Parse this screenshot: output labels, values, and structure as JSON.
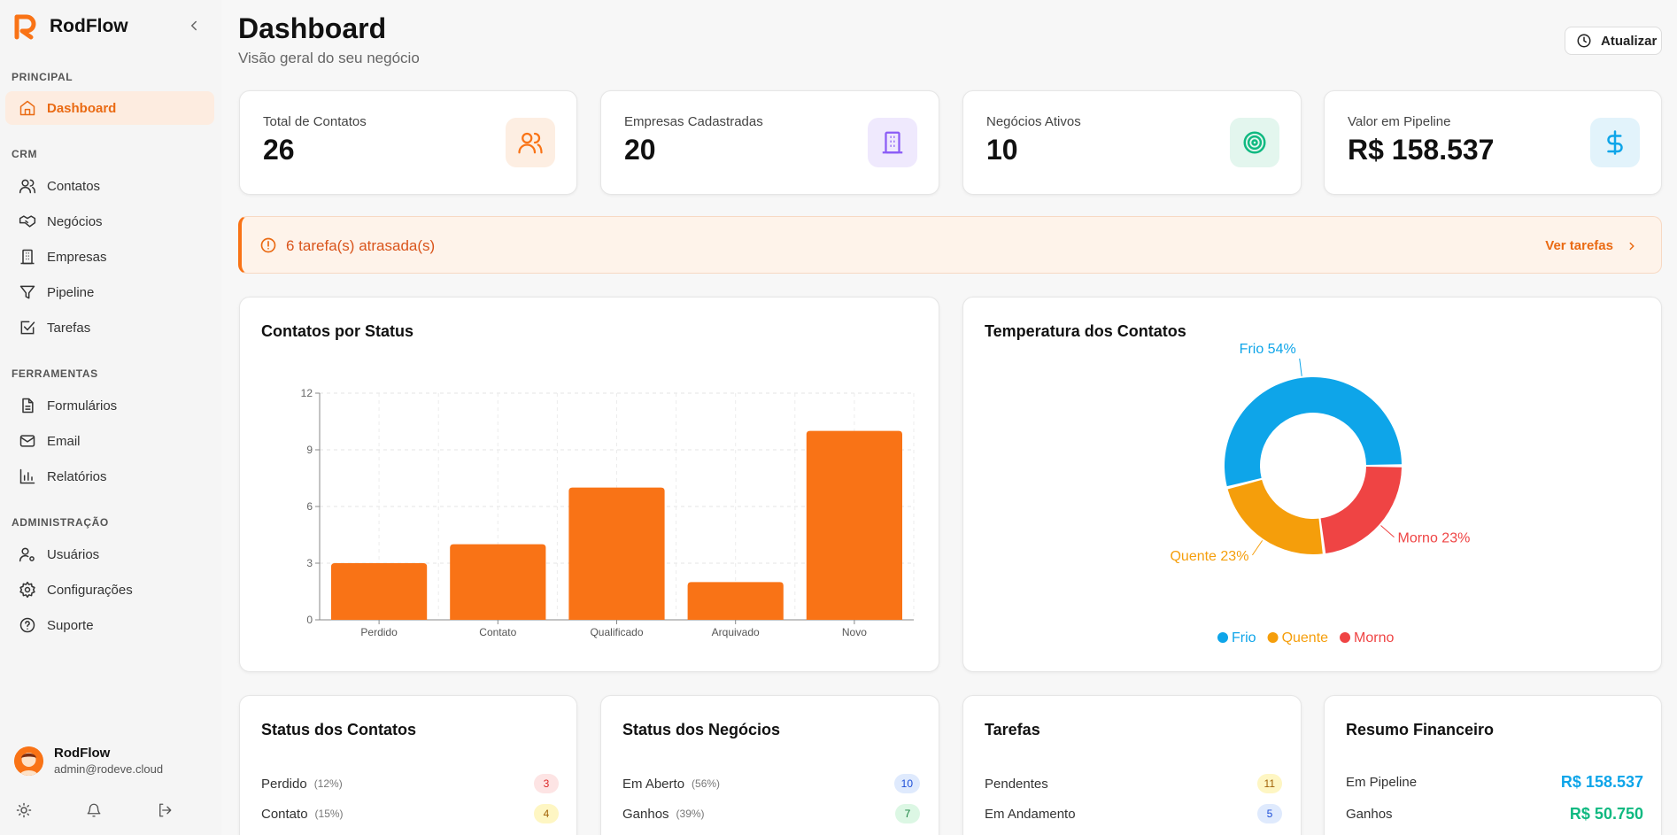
{
  "brand": {
    "name": "RodFlow"
  },
  "sidebar": {
    "sections": [
      {
        "label": "PRINCIPAL"
      },
      {
        "label": "CRM"
      },
      {
        "label": "FERRAMENTAS"
      },
      {
        "label": "ADMINISTRAÇÃO"
      }
    ],
    "items": [
      {
        "label": "Dashboard",
        "icon": "home-icon",
        "active": true
      },
      {
        "label": "Contatos",
        "icon": "users-icon"
      },
      {
        "label": "Negócios",
        "icon": "handshake-icon"
      },
      {
        "label": "Empresas",
        "icon": "building-icon"
      },
      {
        "label": "Pipeline",
        "icon": "filter-icon"
      },
      {
        "label": "Tarefas",
        "icon": "checkbox-icon"
      },
      {
        "label": "Formulários",
        "icon": "file-icon"
      },
      {
        "label": "Email",
        "icon": "mail-icon"
      },
      {
        "label": "Relatórios",
        "icon": "bar-chart-icon"
      },
      {
        "label": "Usuários",
        "icon": "user-cog-icon"
      },
      {
        "label": "Configurações",
        "icon": "gear-icon"
      },
      {
        "label": "Suporte",
        "icon": "help-icon"
      }
    ],
    "user": {
      "name": "RodFlow",
      "email": "admin@rodeve.cloud"
    }
  },
  "header": {
    "title": "Dashboard",
    "subtitle": "Visão geral do seu negócio",
    "refresh_label": "Atualizar"
  },
  "stats": [
    {
      "label": "Total de Contatos",
      "value": "26",
      "icon": "users-icon",
      "color": "#f97316",
      "bg": "#fdeee2"
    },
    {
      "label": "Empresas Cadastradas",
      "value": "20",
      "icon": "building-icon",
      "color": "#8b5cf6",
      "bg": "#efe9fd"
    },
    {
      "label": "Negócios Ativos",
      "value": "10",
      "icon": "target-icon",
      "color": "#10b981",
      "bg": "#e3f6ee"
    },
    {
      "label": "Valor em Pipeline",
      "value": "R$ 158.537",
      "icon": "dollar-icon",
      "color": "#0ea5e9",
      "bg": "#e2f3fb"
    }
  ],
  "alert": {
    "text": "6 tarefa(s) atrasada(s)",
    "link": "Ver tarefas"
  },
  "charts": {
    "status_title": "Contatos por Status",
    "temp_title": "Temperatura dos Contatos"
  },
  "chart_data": [
    {
      "type": "bar",
      "title": "Contatos por Status",
      "categories": [
        "Perdido",
        "Contato",
        "Qualificado",
        "Arquivado",
        "Novo"
      ],
      "values": [
        3,
        4,
        7,
        2,
        10
      ],
      "yticks": [
        "0",
        "3",
        "6",
        "9",
        "12"
      ],
      "ylim": [
        0,
        12
      ],
      "color": "#f97316",
      "grid": true
    },
    {
      "type": "pie",
      "title": "Temperatura dos Contatos",
      "labels": [
        "Frio",
        "Quente",
        "Morno"
      ],
      "values": [
        54,
        23,
        23
      ],
      "slice_labels": [
        "Frio 54%",
        "Quente 23%",
        "Morno 23%"
      ],
      "colors": [
        "#0ea5e9",
        "#f59e0b",
        "#ef4444"
      ],
      "legend": "bottom"
    }
  ],
  "panels": {
    "contatos": {
      "title": "Status dos Contatos",
      "rows": [
        {
          "label": "Perdido",
          "pct": "(12%)",
          "count": "3",
          "bg": "#fde4e4",
          "fg": "#dc2626"
        },
        {
          "label": "Contato",
          "pct": "(15%)",
          "count": "4",
          "bg": "#fef6c3",
          "fg": "#a16207"
        }
      ]
    },
    "negocios": {
      "title": "Status dos Negócios",
      "rows": [
        {
          "label": "Em Aberto",
          "pct": "(56%)",
          "count": "10",
          "bg": "#dfeafd",
          "fg": "#1d4ed8"
        },
        {
          "label": "Ganhos",
          "pct": "(39%)",
          "count": "7",
          "bg": "#dcf7e4",
          "fg": "#15803d"
        }
      ]
    },
    "tarefas": {
      "title": "Tarefas",
      "rows": [
        {
          "label": "Pendentes",
          "count": "11",
          "bg": "#fef6c3",
          "fg": "#a16207"
        },
        {
          "label": "Em Andamento",
          "count": "5",
          "bg": "#dfeafd",
          "fg": "#1d4ed8"
        }
      ]
    },
    "financeiro": {
      "title": "Resumo Financeiro",
      "rows": [
        {
          "label": "Em Pipeline",
          "amount": "R$ 158.537",
          "color": "#0ea5e9"
        },
        {
          "label": "Ganhos",
          "amount": "R$ 50.750",
          "color": "#10b981"
        }
      ]
    }
  }
}
